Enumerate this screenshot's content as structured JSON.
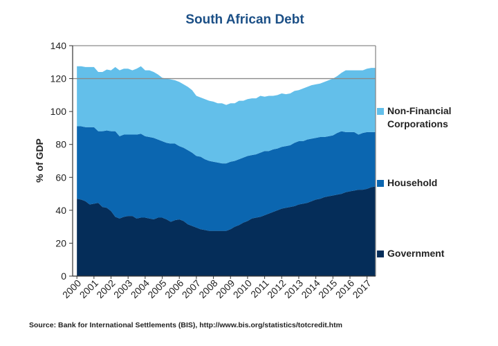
{
  "chart_data": {
    "type": "area",
    "stacked": true,
    "title": "South African Debt",
    "ylabel": "% of GDP",
    "xlabel": "",
    "ylim": [
      0,
      140
    ],
    "yticks": [
      0,
      20,
      40,
      60,
      80,
      100,
      120,
      140
    ],
    "xlim": [
      1999.75,
      2017.5
    ],
    "xtick_labels": [
      "2000",
      "2001",
      "2002",
      "2003",
      "2004",
      "2005",
      "2006",
      "2007",
      "2008",
      "2009",
      "2010",
      "2011",
      "2012",
      "2013",
      "2014",
      "2015",
      "2016",
      "2017"
    ],
    "reference_line": 120,
    "x": [
      2000.0,
      2000.25,
      2000.5,
      2000.75,
      2001.0,
      2001.25,
      2001.5,
      2001.75,
      2002.0,
      2002.25,
      2002.5,
      2002.75,
      2003.0,
      2003.25,
      2003.5,
      2003.75,
      2004.0,
      2004.25,
      2004.5,
      2004.75,
      2005.0,
      2005.25,
      2005.5,
      2005.75,
      2006.0,
      2006.25,
      2006.5,
      2006.75,
      2007.0,
      2007.25,
      2007.5,
      2007.75,
      2008.0,
      2008.25,
      2008.5,
      2008.75,
      2009.0,
      2009.25,
      2009.5,
      2009.75,
      2010.0,
      2010.25,
      2010.5,
      2010.75,
      2011.0,
      2011.25,
      2011.5,
      2011.75,
      2012.0,
      2012.25,
      2012.5,
      2012.75,
      2013.0,
      2013.25,
      2013.5,
      2013.75,
      2014.0,
      2014.25,
      2014.5,
      2014.75,
      2015.0,
      2015.25,
      2015.5,
      2015.75,
      2016.0,
      2016.25,
      2016.5,
      2016.75,
      2017.0,
      2017.25,
      2017.5
    ],
    "series": [
      {
        "name": "Government",
        "color": "#052d59",
        "values": [
          47.0,
          46.5,
          45.5,
          43.5,
          44.0,
          44.5,
          42.0,
          41.5,
          39.5,
          36.0,
          35.0,
          36.0,
          36.5,
          36.5,
          35.0,
          35.5,
          35.5,
          35.0,
          34.5,
          35.5,
          35.5,
          34.5,
          33.0,
          34.0,
          34.5,
          33.5,
          31.5,
          30.5,
          29.5,
          28.5,
          28.0,
          27.5,
          27.5,
          27.5,
          27.5,
          27.5,
          28.5,
          30.0,
          31.0,
          32.5,
          33.5,
          35.0,
          35.5,
          36.0,
          37.0,
          38.0,
          39.0,
          40.0,
          41.0,
          41.5,
          42.0,
          42.5,
          43.5,
          44.0,
          44.5,
          45.5,
          46.5,
          47.0,
          48.0,
          48.5,
          49.0,
          49.5,
          50.0,
          51.0,
          51.5,
          52.0,
          52.5,
          52.5,
          53.0,
          54.0,
          54.5
        ]
      },
      {
        "name": "Household",
        "color": "#0b66b0",
        "values": [
          44.0,
          44.5,
          45.0,
          47.0,
          46.5,
          43.5,
          46.0,
          47.0,
          48.5,
          52.0,
          50.0,
          50.0,
          49.5,
          49.5,
          51.0,
          51.0,
          49.5,
          49.5,
          49.5,
          47.5,
          46.5,
          46.5,
          47.5,
          46.5,
          44.5,
          44.5,
          45.0,
          44.5,
          43.5,
          44.0,
          43.0,
          42.5,
          42.0,
          41.5,
          41.0,
          41.0,
          41.0,
          40.0,
          40.0,
          39.5,
          39.5,
          38.5,
          38.5,
          39.0,
          39.0,
          38.0,
          38.0,
          37.5,
          37.5,
          37.5,
          37.5,
          38.5,
          38.5,
          38.0,
          38.5,
          38.0,
          37.5,
          37.5,
          36.5,
          36.5,
          36.5,
          37.5,
          38.0,
          36.5,
          36.0,
          35.5,
          33.5,
          34.5,
          34.5,
          33.5,
          33.0
        ]
      },
      {
        "name": "Non-Financial Corporations",
        "color": "#63bfea",
        "values": [
          36.5,
          36.5,
          36.5,
          36.5,
          36.5,
          36.0,
          36.0,
          37.0,
          37.0,
          39.0,
          40.0,
          40.0,
          40.0,
          39.0,
          40.0,
          41.0,
          40.0,
          40.5,
          40.0,
          39.5,
          38.5,
          39.0,
          39.0,
          38.5,
          39.0,
          38.5,
          38.5,
          38.0,
          36.5,
          36.0,
          36.5,
          36.5,
          36.5,
          36.0,
          36.5,
          35.5,
          35.5,
          35.0,
          35.5,
          34.5,
          34.5,
          34.5,
          34.0,
          34.5,
          33.0,
          33.5,
          32.5,
          32.5,
          32.5,
          31.5,
          31.5,
          31.5,
          31.0,
          32.0,
          32.0,
          32.5,
          32.5,
          32.5,
          33.5,
          34.0,
          34.5,
          34.5,
          35.5,
          37.5,
          37.5,
          37.5,
          39.0,
          38.0,
          38.5,
          39.0,
          39.0
        ]
      }
    ]
  },
  "legend": [
    {
      "label": "Non-Financial Corporations"
    },
    {
      "label": "Household"
    },
    {
      "label": "Government"
    }
  ],
  "source": "Source: Bank for International Settlements (BIS), http://www.bis.org/statistics/totcredit.htm"
}
